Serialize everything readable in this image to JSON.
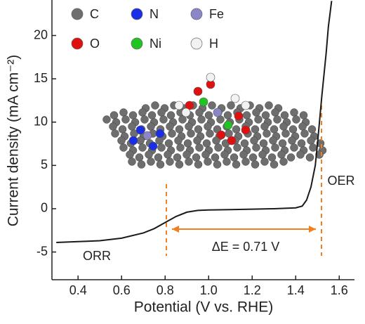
{
  "chart_data": {
    "type": "line",
    "x_label": "Potential (V vs. RHE)",
    "y_label": "Current density (mA cm⁻²)",
    "x": [
      0.3,
      0.4,
      0.5,
      0.6,
      0.7,
      0.75,
      0.8,
      0.85,
      0.9,
      0.95,
      1.0,
      1.1,
      1.2,
      1.3,
      1.4,
      1.43,
      1.45,
      1.47,
      1.49,
      1.5,
      1.52,
      1.54,
      1.55,
      1.565
    ],
    "series": [
      {
        "name": "",
        "color": "#1a1a1a",
        "values": [
          -3.9,
          -3.8,
          -3.7,
          -3.4,
          -2.8,
          -2.3,
          -1.6,
          -0.9,
          -0.4,
          -0.2,
          -0.15,
          -0.1,
          -0.05,
          0.0,
          0.1,
          0.3,
          1,
          2.5,
          5,
          7.5,
          13,
          18,
          21,
          24
        ]
      }
    ],
    "xlim": [
      0.28,
      1.67
    ],
    "ylim": [
      -8.2,
      24.1
    ],
    "xticks": [
      0.4,
      0.6,
      0.8,
      {
        "value": 1,
        "label": "1.0"
      },
      1.2,
      1.4,
      1.6
    ],
    "yticks": [
      -5,
      0,
      5,
      10,
      15,
      20
    ],
    "annotations": {
      "orr": "ORR",
      "oer": "OER",
      "delta_e": "ΔE = 0.71 V"
    },
    "atom_legend": [
      {
        "name": "C",
        "color": "#6e6e6e"
      },
      {
        "name": "N",
        "color": "#1a2ee8"
      },
      {
        "name": "Fe",
        "color": "#8a86c8"
      },
      {
        "name": "O",
        "color": "#e01010"
      },
      {
        "name": "Ni",
        "color": "#22c422"
      },
      {
        "name": "H",
        "color": "#f2f2f2"
      }
    ]
  }
}
